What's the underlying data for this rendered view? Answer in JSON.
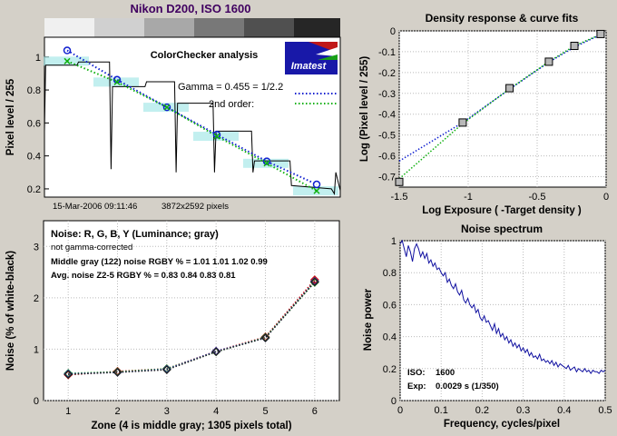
{
  "header": {
    "title": "Nikon D200, ISO 1600"
  },
  "logo": {
    "text": "Imatest"
  },
  "chart_data": [
    {
      "id": "colorchecker",
      "type": "line",
      "title": "ColorChecker analysis",
      "ylabel": "Pixel level / 255",
      "ylim": [
        0.15,
        1.12
      ],
      "yticks": [
        0.2,
        0.4,
        0.6,
        0.8,
        1
      ],
      "timestamp": "15-Mar-2006 09:11:46",
      "pixels": "3872x2592 pixels",
      "legend": [
        "Gamma = 0.455 = 1/2.2",
        "2nd order:"
      ],
      "zones": [
        1,
        2,
        3,
        4,
        5,
        6
      ],
      "measured": [
        0.968,
        0.843,
        0.714,
        0.535,
        0.372,
        0.194
      ],
      "gamma_fit": [
        1.04,
        0.862,
        0.695,
        0.529,
        0.367,
        0.227
      ],
      "second_order_fit": [
        0.975,
        0.848,
        0.695,
        0.519,
        0.355,
        0.188
      ],
      "signal_profile": [
        [
          0,
          0.55
        ],
        [
          0.004,
          0.95
        ],
        [
          0.11,
          0.95
        ],
        [
          0.115,
          0.97
        ],
        [
          0.22,
          0.97
        ],
        [
          0.225,
          0.32
        ],
        [
          0.23,
          0.82
        ],
        [
          0.34,
          0.82
        ],
        [
          0.345,
          0.85
        ],
        [
          0.44,
          0.85
        ],
        [
          0.445,
          0.3
        ],
        [
          0.45,
          0.72
        ],
        [
          0.57,
          0.72
        ],
        [
          0.575,
          0.3
        ],
        [
          0.58,
          0.55
        ],
        [
          0.7,
          0.55
        ],
        [
          0.705,
          0.3
        ],
        [
          0.71,
          0.37
        ],
        [
          0.83,
          0.37
        ],
        [
          0.835,
          0.22
        ],
        [
          0.97,
          0.2
        ],
        [
          0.98,
          0.17
        ],
        [
          0.985,
          0.3
        ],
        [
          1.0,
          0.19
        ]
      ]
    },
    {
      "id": "density",
      "type": "line",
      "title": "Density response & curve fits",
      "xlabel": "Log Exposure  ( -Target density )",
      "ylabel": "Log (Pixel level / 255)",
      "xlim": [
        -1.5,
        0
      ],
      "ylim": [
        -0.75,
        0
      ],
      "xticks": [
        -1.5,
        -1,
        -0.5,
        0
      ],
      "yticks": [
        -0.7,
        -0.6,
        -0.5,
        -0.4,
        -0.3,
        -0.2,
        -0.1,
        0
      ],
      "points": [
        [
          -1.5,
          -0.725
        ],
        [
          -1.04,
          -0.44
        ],
        [
          -0.7,
          -0.275
        ],
        [
          -0.415,
          -0.148
        ],
        [
          -0.23,
          -0.072
        ],
        [
          -0.04,
          -0.015
        ]
      ],
      "gamma_fit": [
        [
          -1.5,
          -0.625
        ],
        [
          -1.04,
          -0.44
        ],
        [
          -0.7,
          -0.28
        ],
        [
          -0.415,
          -0.15
        ],
        [
          -0.23,
          -0.078
        ],
        [
          -0.04,
          -0.018
        ]
      ],
      "second_order_fit": [
        [
          -1.5,
          -0.71
        ],
        [
          -1.04,
          -0.445
        ],
        [
          -0.7,
          -0.278
        ],
        [
          -0.415,
          -0.148
        ],
        [
          -0.23,
          -0.072
        ],
        [
          -0.04,
          -0.017
        ]
      ]
    },
    {
      "id": "noise",
      "type": "line",
      "title": "Noise: R, G, B, Y (Luminance; gray)",
      "xlabel": "Zone  (4 is middle gray;  1305 pixels total)",
      "ylabel": "Noise (% of white-black)",
      "xlim": [
        0.5,
        6.5
      ],
      "ylim": [
        0,
        3.5
      ],
      "xticks": [
        1,
        2,
        3,
        4,
        5,
        6
      ],
      "yticks": [
        0,
        1,
        2,
        3
      ],
      "notes": [
        "not gamma-corrected",
        "Middle gray (122) noise RGBY % = 1.01  1.01  1.02  0.99",
        "Avg. noise Z2-5 RGBY % = 0.83  0.84  0.83  0.81"
      ],
      "categories": [
        1,
        2,
        3,
        4,
        5,
        6
      ],
      "series": [
        {
          "color": "#d01010",
          "values": [
            0.5,
            0.57,
            0.62,
            0.96,
            1.24,
            2.35
          ]
        },
        {
          "color": "#20a020",
          "values": [
            0.53,
            0.56,
            0.62,
            0.95,
            1.23,
            2.3
          ]
        },
        {
          "color": "#2030c0",
          "values": [
            0.52,
            0.55,
            0.61,
            0.96,
            1.22,
            2.32
          ]
        },
        {
          "color": "#202020",
          "values": [
            0.51,
            0.55,
            0.6,
            0.95,
            1.22,
            2.31
          ]
        }
      ]
    },
    {
      "id": "spectrum",
      "type": "line",
      "title": "Noise spectrum",
      "xlabel": "Frequency, cycles/pixel",
      "ylabel": "Noise power",
      "xlim": [
        0,
        0.5
      ],
      "ylim": [
        0,
        1
      ],
      "xticks": [
        0,
        0.1,
        0.2,
        0.3,
        0.4,
        0.5
      ],
      "yticks": [
        0,
        0.2,
        0.4,
        0.6,
        0.8,
        1
      ],
      "iso_label": "ISO:",
      "iso_value": "1600",
      "exp_label": "Exp:",
      "exp_value": "0.0029 s  (1/350)",
      "x": [
        0,
        0.005,
        0.01,
        0.015,
        0.02,
        0.025,
        0.03,
        0.035,
        0.04,
        0.045,
        0.05,
        0.055,
        0.06,
        0.065,
        0.07,
        0.075,
        0.08,
        0.085,
        0.09,
        0.095,
        0.1,
        0.105,
        0.11,
        0.115,
        0.12,
        0.125,
        0.13,
        0.135,
        0.14,
        0.145,
        0.15,
        0.155,
        0.16,
        0.165,
        0.17,
        0.175,
        0.18,
        0.185,
        0.19,
        0.195,
        0.2,
        0.205,
        0.21,
        0.215,
        0.22,
        0.225,
        0.23,
        0.235,
        0.24,
        0.245,
        0.25,
        0.255,
        0.26,
        0.265,
        0.27,
        0.275,
        0.28,
        0.285,
        0.29,
        0.295,
        0.3,
        0.305,
        0.31,
        0.315,
        0.32,
        0.325,
        0.33,
        0.335,
        0.34,
        0.345,
        0.35,
        0.355,
        0.36,
        0.365,
        0.37,
        0.375,
        0.38,
        0.385,
        0.39,
        0.395,
        0.4,
        0.405,
        0.41,
        0.415,
        0.42,
        0.425,
        0.43,
        0.435,
        0.44,
        0.445,
        0.45,
        0.455,
        0.46,
        0.465,
        0.47,
        0.475,
        0.48,
        0.485,
        0.49,
        0.495,
        0.5
      ],
      "values": [
        0.98,
        1.0,
        0.95,
        0.9,
        0.97,
        0.93,
        0.87,
        0.95,
        0.98,
        0.95,
        0.9,
        0.93,
        0.89,
        0.92,
        0.86,
        0.88,
        0.84,
        0.86,
        0.82,
        0.83,
        0.8,
        0.78,
        0.8,
        0.74,
        0.76,
        0.72,
        0.7,
        0.73,
        0.68,
        0.66,
        0.69,
        0.63,
        0.61,
        0.64,
        0.6,
        0.58,
        0.6,
        0.55,
        0.57,
        0.52,
        0.5,
        0.53,
        0.49,
        0.5,
        0.47,
        0.44,
        0.48,
        0.42,
        0.45,
        0.4,
        0.42,
        0.38,
        0.4,
        0.36,
        0.38,
        0.34,
        0.36,
        0.33,
        0.35,
        0.31,
        0.33,
        0.3,
        0.32,
        0.28,
        0.3,
        0.27,
        0.28,
        0.26,
        0.29,
        0.25,
        0.26,
        0.24,
        0.25,
        0.23,
        0.25,
        0.22,
        0.24,
        0.21,
        0.23,
        0.22,
        0.21,
        0.2,
        0.22,
        0.19,
        0.2,
        0.21,
        0.18,
        0.2,
        0.19,
        0.18,
        0.2,
        0.18,
        0.19,
        0.17,
        0.19,
        0.18,
        0.18,
        0.17,
        0.19,
        0.18,
        0.19
      ]
    }
  ]
}
